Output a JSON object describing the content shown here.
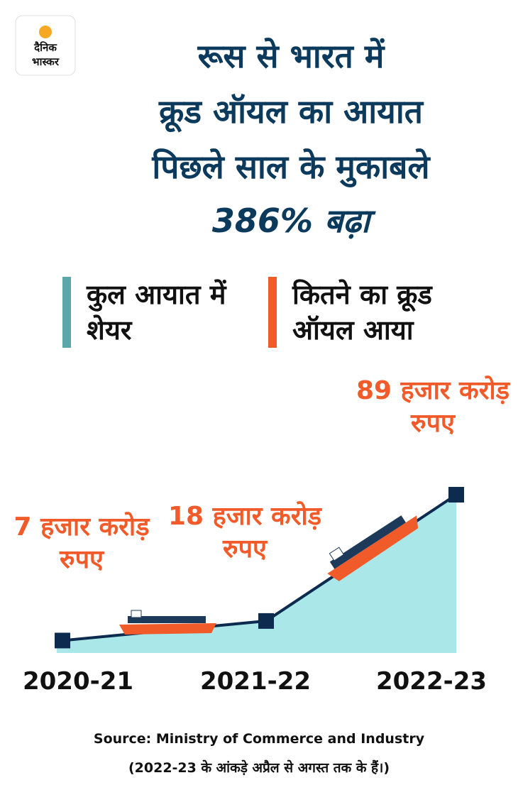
{
  "logo": {
    "line1": "दैनिक",
    "line2": "भास्कर"
  },
  "title_lines": [
    "रूस से भारत में",
    "क्रूड ऑयल का आयात",
    "पिछले साल के मुकाबले"
  ],
  "highlight": "386% बढ़ा",
  "chart_data": {
    "type": "area",
    "legend": [
      {
        "name": "कुल आयात में शेयर",
        "color": "#5ba7a9"
      },
      {
        "name": "कितने का क्रूड ऑयल आया",
        "color": "#f15a29"
      }
    ],
    "categories": [
      "2020-21",
      "2021-22",
      "2022-23"
    ],
    "values": [
      7,
      18,
      89
    ],
    "value_labels": [
      "7 हजार करोड़ रुपए",
      "18 हजार करोड़ रुपए",
      "89 हजार करोड़ रुपए"
    ],
    "area_color": "#a9e7e8",
    "line_color": "#0d2b4e",
    "label_color": "#f15a29"
  },
  "source": "Source: Ministry of Commerce and Industry",
  "note": "(2022-23 के आंकड़े अप्रैल से अगस्त तक के हैं।)"
}
